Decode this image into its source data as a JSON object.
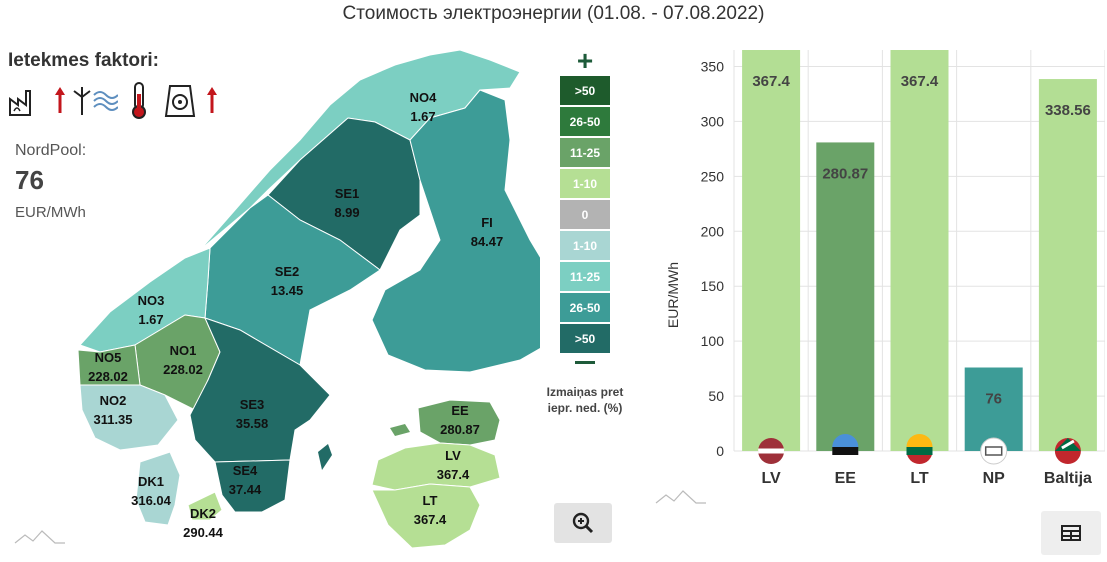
{
  "title": "Стоимость электроэнергии (01.08. - 07.08.2022)",
  "factors": {
    "label": "Ietekmes faktori:",
    "icons": [
      "factory-icon",
      "arrow-up-icon",
      "wind-icon",
      "thermometer-icon",
      "nuclear-plant-icon",
      "arrow-up-icon"
    ]
  },
  "nordpool": {
    "label": "NordPool:",
    "value": "76",
    "unit": "EUR/MWh"
  },
  "map": {
    "regions": [
      {
        "id": "NO4",
        "name": "NO4",
        "value": "1.67",
        "color": "#7ccfc2"
      },
      {
        "id": "SE1",
        "name": "SE1",
        "value": "8.99",
        "color": "#226b66"
      },
      {
        "id": "FI",
        "name": "FI",
        "value": "84.47",
        "color": "#3d9c97"
      },
      {
        "id": "SE2",
        "name": "SE2",
        "value": "13.45",
        "color": "#3d9c97"
      },
      {
        "id": "NO3",
        "name": "NO3",
        "value": "1.67",
        "color": "#7ccfc2"
      },
      {
        "id": "NO1",
        "name": "NO1",
        "value": "228.02",
        "color": "#6aa368"
      },
      {
        "id": "NO5",
        "name": "NO5",
        "value": "228.02",
        "color": "#6aa368"
      },
      {
        "id": "NO2",
        "name": "NO2",
        "value": "311.35",
        "color": "#a9d6d3"
      },
      {
        "id": "SE3",
        "name": "SE3",
        "value": "35.58",
        "color": "#226b66"
      },
      {
        "id": "SE4",
        "name": "SE4",
        "value": "37.44",
        "color": "#226b66"
      },
      {
        "id": "DK1",
        "name": "DK1",
        "value": "316.04",
        "color": "#a9d6d3"
      },
      {
        "id": "DK2",
        "name": "DK2",
        "value": "290.44",
        "color": "#b5df94"
      },
      {
        "id": "EE",
        "name": "EE",
        "value": "280.87",
        "color": "#6aa368"
      },
      {
        "id": "LV",
        "name": "LV",
        "value": "367.4",
        "color": "#b5df94"
      },
      {
        "id": "LT",
        "name": "LT",
        "value": "367.4",
        "color": "#b5df94"
      }
    ]
  },
  "legend": {
    "plus": "+",
    "items": [
      {
        "label": ">50",
        "color": "#1e5b2c"
      },
      {
        "label": "26-50",
        "color": "#2e7a3c"
      },
      {
        "label": "11-25",
        "color": "#6aa368"
      },
      {
        "label": "1-10",
        "color": "#b5df94"
      },
      {
        "label": "0",
        "color": "#b3b3b3"
      },
      {
        "label": "1-10",
        "color": "#a9d6d3"
      },
      {
        "label": "11-25",
        "color": "#7ccfc2"
      },
      {
        "label": "26-50",
        "color": "#3d9c97"
      },
      {
        "label": ">50",
        "color": "#226b66"
      }
    ],
    "caption": "Izmaiņas pret iepr. ned. (%)"
  },
  "chart_data": {
    "type": "bar",
    "categories": [
      "LV",
      "EE",
      "LT",
      "NP",
      "Baltija"
    ],
    "values": [
      367.4,
      280.87,
      367.4,
      76,
      338.56
    ],
    "labels": [
      "367.4",
      "280.87",
      "367.4",
      "76",
      "338.56"
    ],
    "colors": [
      "#b3de94",
      "#6aa368",
      "#b3de94",
      "#3d9c97",
      "#b3de94"
    ],
    "ylabel": "EUR/MWh",
    "ylim": [
      0,
      365
    ],
    "yticks": [
      0,
      50,
      100,
      150,
      200,
      250,
      300,
      350
    ],
    "grid": true,
    "flag_icons": [
      "latvia-flag-icon",
      "estonia-flag-icon",
      "lithuania-flag-icon",
      "nordpool-logo-icon",
      "baltic-flags-icon"
    ]
  }
}
